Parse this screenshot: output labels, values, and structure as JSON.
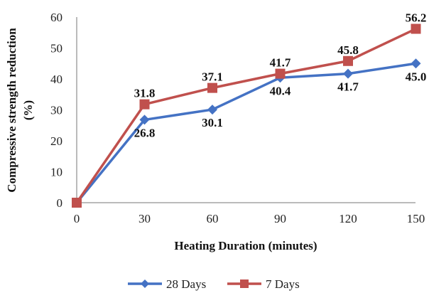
{
  "chart_data": {
    "type": "line",
    "x": [
      0,
      30,
      60,
      90,
      120,
      150
    ],
    "xlabel": "Heating Duration (minutes)",
    "ylabel_lines": [
      "Compressive strength reduction",
      "(%)"
    ],
    "ylim": [
      0,
      60
    ],
    "yticks": [
      0,
      10,
      20,
      30,
      40,
      50,
      60
    ],
    "grid": false,
    "legend": "bottom",
    "series": [
      {
        "name": "28 Days",
        "values": [
          0,
          26.8,
          30.1,
          40.4,
          41.7,
          45.0
        ],
        "labels": [
          "",
          "26.8",
          "30.1",
          "40.4",
          "41.7",
          "45.0"
        ],
        "color": "#4472C4",
        "marker": "diamond"
      },
      {
        "name": "7 Days",
        "values": [
          0,
          31.8,
          37.1,
          41.7,
          45.8,
          56.2
        ],
        "labels": [
          "",
          "31.8",
          "37.1",
          "41.7",
          "45.8",
          "56.2"
        ],
        "color": "#C0504D",
        "marker": "square"
      }
    ]
  }
}
